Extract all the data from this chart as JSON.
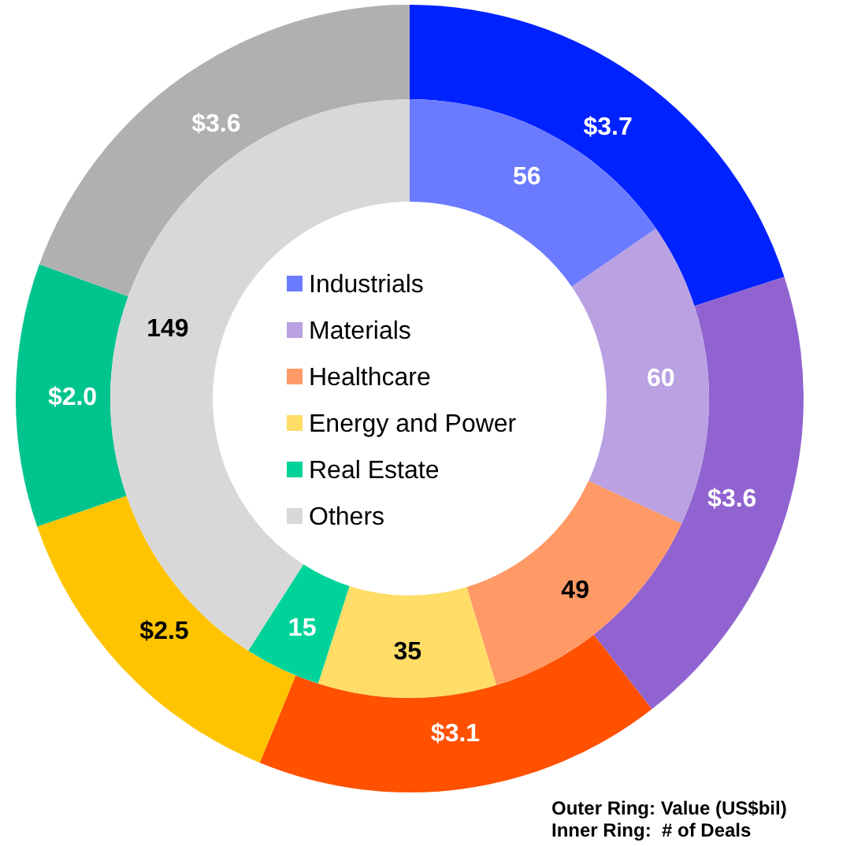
{
  "chart_data": {
    "type": "donut",
    "categories": [
      "Industrials",
      "Materials",
      "Healthcare",
      "Energy and Power",
      "Real Estate",
      "Others"
    ],
    "series": [
      {
        "values": [
          3.7,
          3.6,
          3.1,
          2.5,
          2.0,
          3.6
        ],
        "colors": [
          "#0022ff",
          "#9063d0",
          "#ff5100",
          "#ffc400",
          "#00c48e",
          "#b0b0b0"
        ],
        "value_labels": [
          "$3.7",
          "$3.6",
          "$3.1",
          "$2.5",
          "$2.0",
          "$3.6"
        ]
      },
      {
        "values": [
          56,
          60,
          49,
          35,
          15,
          149
        ],
        "colors": [
          "#6b7bff",
          "#b9a1e2",
          "#ff9966",
          "#ffdd66",
          "#00d39a",
          "#d8d8d8"
        ],
        "value_labels": [
          "56",
          "60",
          "49",
          "35",
          "15",
          "149"
        ]
      }
    ],
    "legend": "center",
    "annotations": [
      "Outer Ring: Value (US$bil)",
      "Inner Ring:  # of Deals"
    ]
  }
}
